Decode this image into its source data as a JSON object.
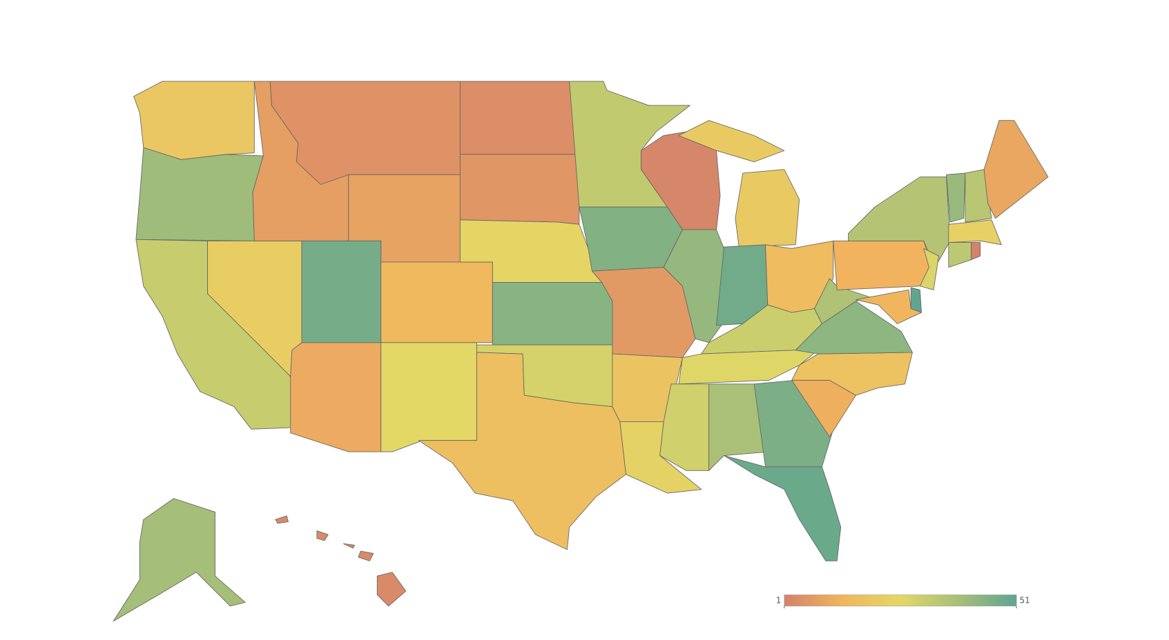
{
  "chart_data": {
    "type": "choropleth",
    "values": [
      20,
      40,
      32,
      22,
      8,
      5,
      9,
      47,
      15,
      11,
      26,
      4,
      6,
      25,
      44,
      29,
      17,
      33,
      45,
      7,
      19,
      24,
      2,
      42,
      21,
      48,
      16,
      31,
      27,
      30,
      38,
      46,
      49,
      12,
      18,
      43,
      37,
      13,
      36,
      28,
      51,
      14,
      41,
      35,
      10,
      23,
      34,
      1,
      39,
      3
    ],
    "clim": [
      1,
      51
    ],
    "colorscale": [
      "#d4826a",
      "#f2b55d",
      "#e3d866",
      "#a8bf78",
      "#5fa58f"
    ],
    "colorbar_ticks": [
      1,
      51
    ]
  }
}
